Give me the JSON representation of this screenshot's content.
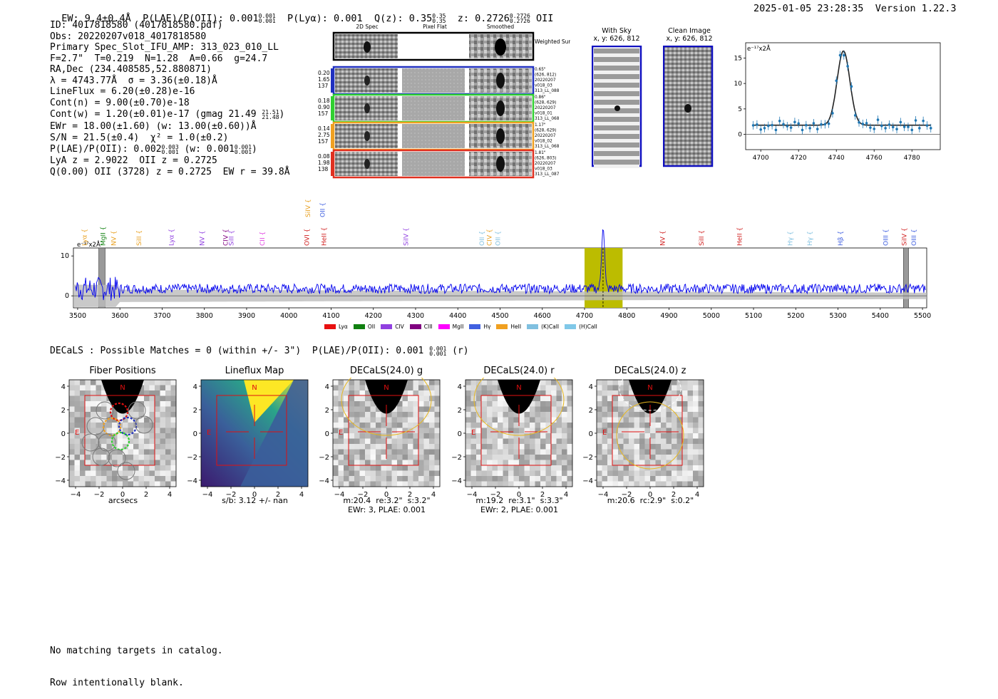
{
  "header": {
    "ew": "EW: 9.4±0.4Å",
    "plae": "P(LAE)/P(OII): 0.001",
    "plae_hi": "0.001",
    "plae_lo": "0.001",
    "plya": "P(Lyα): 0.001",
    "qz": "Q(z): 0.35",
    "qz_hi": "0.35",
    "qz_lo": "0.35",
    "z": "z: 0.2726",
    "z_hi": "0.2726",
    "z_lo": "0.2726",
    "line": "OII",
    "timestamp": "2025-01-05 23:28:35",
    "version": "Version 1.22.3"
  },
  "info": {
    "id": "ID: 4017818580 (4017818580.pdf)",
    "obs": "Obs: 20220207v018_4017818580",
    "primary": "Primary Spec_Slot_IFU_AMP: 313_023_010_LL",
    "fwhm": "F=2.7\"  T=0.219  N=1.28  A=0.66  g=24.7",
    "radec": "RA,Dec (234.408585,52.880871)",
    "wave": "λ = 4743.77Å  σ = 3.36(±0.18)Å",
    "lineflux": "LineFlux = 6.20(±0.28)e-16",
    "contn": "Cont(n) = 9.00(±0.70)e-18",
    "contw": "Cont(w) = 1.20(±0.01)e-17 (gmag 21.49",
    "contw_hi": "21.51",
    "contw_lo": "21.48",
    "contw_end": ")",
    "ewr": "EWr = 18.00(±1.60) (w: 13.00(±0.60))Å",
    "sn": "S/N = 21.5(±0.4)  χ² = 1.0(±0.2)",
    "plae2": "P(LAE)/P(OII): 0.002",
    "plae2_hi": "0.003",
    "plae2_lo": "0.001",
    "plae2_w": "(w: 0.001",
    "plae2_w_hi": "0.001",
    "plae2_w_lo": "0.001",
    "plae2_end": ")",
    "lya": "LyA z = 2.9022  OII z = 0.2725",
    "q": "Q(0.00) OII (3728) z = 0.2725  EW r = 39.8Å"
  },
  "cutouts": {
    "col_2d": "2D Spec",
    "col_flat": "Pixel Flat",
    "col_smooth": "Smoothed",
    "weighted": "Weighted Sum",
    "rows": [
      {
        "n1": "0.20",
        "n2": "1.65",
        "n3": "137",
        "d1": "0.65\"",
        "d2": "(626, 812)",
        "d3": "20220207",
        "d4": "v018_03",
        "d5": "313_LL_088",
        "color": "#2030c0"
      },
      {
        "n1": "0.18",
        "n2": "0.90",
        "n3": "157",
        "d1": "0.86\"",
        "d2": "(628, 629)",
        "d3": "20220207",
        "d4": "v018_01",
        "d5": "313_LL_068",
        "color": "#30d030"
      },
      {
        "n1": "0.14",
        "n2": "2.75",
        "n3": "157",
        "d1": "1.17\"",
        "d2": "(628, 629)",
        "d3": "20220207",
        "d4": "v018_02",
        "d5": "313_LL_068",
        "color": "#f0a020"
      },
      {
        "n1": "0.08",
        "n2": "1.98",
        "n3": "138",
        "d1": "1.81\"",
        "d2": "(626, 803)",
        "d3": "20220207",
        "d4": "v018_03",
        "d5": "313_LL_087",
        "color": "#e03020"
      }
    ],
    "withsky_title": "With Sky",
    "withsky_xy": "x, y: 626, 812",
    "clean_title": "Clean Image",
    "clean_xy": "x, y: 626, 812"
  },
  "zoom_chart": {
    "unit": "e⁻¹⁷x2Å",
    "yticks": [
      "0",
      "5",
      "10",
      "15"
    ],
    "xticks": [
      "4700",
      "4720",
      "4740",
      "4760",
      "4780"
    ]
  },
  "line_labels": [
    {
      "name": "Lyα",
      "w": 3516,
      "color": "#e8a020"
    },
    {
      "name": "MgII",
      "w": 3560,
      "color": "#108010"
    },
    {
      "name": "NV",
      "w": 3585,
      "color": "#e8a020"
    },
    {
      "name": "SiII",
      "w": 3645,
      "color": "#e8a020"
    },
    {
      "name": "Lyα",
      "w": 3722,
      "color": "#9040e0"
    },
    {
      "name": "NV",
      "w": 3795,
      "color": "#9040e0"
    },
    {
      "name": "CIV",
      "w": 3850,
      "color": "#800080"
    },
    {
      "name": "SiII",
      "w": 3864,
      "color": "#9040e0"
    },
    {
      "name": "CII",
      "w": 3937,
      "color": "#e040e0"
    },
    {
      "name": "OVI",
      "w": 4043,
      "color": "#d02020"
    },
    {
      "name": "HeII",
      "w": 4083,
      "color": "#d02020"
    },
    {
      "name": "SiIV",
      "w": 4277,
      "color": "#9040e0"
    },
    {
      "name": "OII",
      "w": 4457,
      "color": "#80c0e0"
    },
    {
      "name": "CIV",
      "w": 4475,
      "color": "#e8a020"
    },
    {
      "name": "OII",
      "w": 4495,
      "color": "#80c0e0"
    },
    {
      "name": "NV",
      "w": 4885,
      "color": "#d02020"
    },
    {
      "name": "SiII",
      "w": 4977,
      "color": "#d02020"
    },
    {
      "name": "HeII",
      "w": 5067,
      "color": "#d02020"
    },
    {
      "name": "Hγ",
      "w": 5187,
      "color": "#80c0e0"
    },
    {
      "name": "Hγ",
      "w": 5233,
      "color": "#80c0e0"
    },
    {
      "name": "Hβ",
      "w": 5306,
      "color": "#4060e0"
    },
    {
      "name": "OIII",
      "w": 5413,
      "color": "#4060e0"
    },
    {
      "name": "SiIV",
      "w": 5457,
      "color": "#d02020"
    },
    {
      "name": "OIII",
      "w": 5480,
      "color": "#4060e0"
    }
  ],
  "upper_labels": [
    {
      "name": "SiIV",
      "w": 4045,
      "color": "#e8a020"
    },
    {
      "name": "OII",
      "w": 4080,
      "color": "#4060e0"
    }
  ],
  "chart_data": {
    "type": "line",
    "title": "",
    "ylabel": "e⁻¹⁷x2Å",
    "xlabel": "",
    "xlim": [
      3490,
      5510
    ],
    "ylim": [
      -3,
      12
    ],
    "xticks": [
      3500,
      3600,
      3700,
      3800,
      3900,
      4000,
      4100,
      4200,
      4300,
      4400,
      4500,
      4600,
      4700,
      4800,
      4900,
      5000,
      5100,
      5200,
      5300,
      5400,
      5500
    ],
    "yticks": [
      0,
      10
    ],
    "highlight_band": [
      4700,
      4790
    ],
    "emission_line": {
      "center": 4743.77,
      "peak": 16
    },
    "series": [
      {
        "name": "spectrum",
        "color": "#0000ee",
        "baseline": 1.8
      }
    ],
    "legend": [
      "Lyα",
      "OII",
      "CIV",
      "CIII",
      "MgII",
      "Hγ",
      "HeII",
      "(K)CaII",
      "(H)CaII"
    ],
    "legend_colors": [
      "#e81010",
      "#108010",
      "#9040e0",
      "#800080",
      "#ff00ff",
      "#4060e0",
      "#f0a020",
      "#80c0e0",
      "#80c8e8"
    ]
  },
  "decals": {
    "summary": "DECaLS : Possible Matches = 0 (within +/- 3\")  P(LAE)/P(OII): 0.001",
    "summary_hi": "0.001",
    "summary_lo": "0.001",
    "summary_end": "(r)",
    "panels": [
      {
        "title": "Fiber Positions",
        "cap1": "arcsecs",
        "cap2": ""
      },
      {
        "title": "Lineflux Map",
        "cap1": "s/b: 3.12 +/- nan",
        "cap2": ""
      },
      {
        "title": "DECaLS(24.0) g",
        "cap1": "m:20.4  re:3.2\"  s:3.2\"",
        "cap2": "EWr: 3, PLAE: 0.001"
      },
      {
        "title": "DECaLS(24.0) r",
        "cap1": "m:19.2  re:3.1\"  s:3.3\"",
        "cap2": "EWr: 2, PLAE: 0.001"
      },
      {
        "title": "DECaLS(24.0) z",
        "cap1": "m:20.6  rc:2.9\"  s:0.2\"",
        "cap2": ""
      }
    ],
    "ticks": [
      "4",
      "2",
      "0",
      "−2",
      "−4"
    ],
    "xticks": [
      "−4",
      "−2",
      "0",
      "2",
      "4"
    ],
    "north": "N",
    "east": "E"
  },
  "footer": {
    "line1": "No matching targets in catalog.",
    "line2": "Row intentionally blank."
  }
}
